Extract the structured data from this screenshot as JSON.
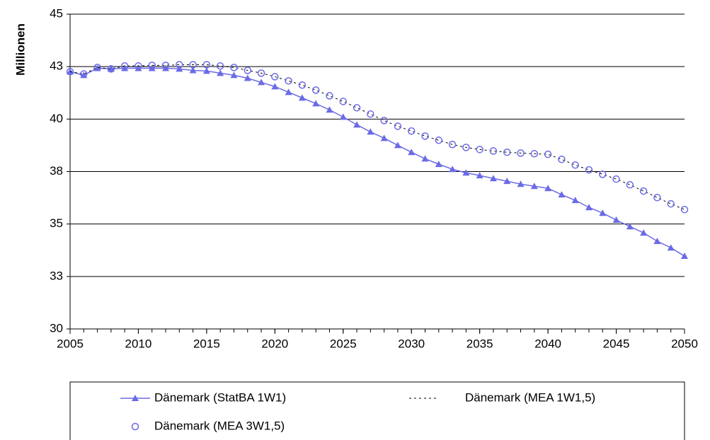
{
  "chart_data": {
    "type": "line",
    "y_label": "Millionen",
    "x": [
      2005,
      2006,
      2007,
      2008,
      2009,
      2010,
      2011,
      2012,
      2013,
      2014,
      2015,
      2016,
      2017,
      2018,
      2019,
      2020,
      2021,
      2022,
      2023,
      2024,
      2025,
      2026,
      2027,
      2028,
      2029,
      2030,
      2031,
      2032,
      2033,
      2034,
      2035,
      2036,
      2037,
      2038,
      2039,
      2040,
      2041,
      2042,
      2043,
      2044,
      2045,
      2046,
      2047,
      2048,
      2049,
      2050
    ],
    "xlim": [
      2005,
      2050
    ],
    "xticks": [
      2005,
      2010,
      2015,
      2020,
      2025,
      2030,
      2035,
      2040,
      2045,
      2050
    ],
    "ylim": [
      30,
      45
    ],
    "yticks": [
      30,
      {
        "value": 32.5,
        "label": "33"
      },
      35,
      {
        "value": 37.5,
        "label": "38"
      },
      40,
      {
        "value": 42.5,
        "label": "43"
      },
      45
    ],
    "grid": true,
    "series": [
      {
        "name": "Dänemark (StatBA 1W1)",
        "color": "#6b6be6",
        "line": "solid",
        "marker": "triangle",
        "values": [
          42.26,
          42.09,
          42.42,
          42.39,
          42.42,
          42.42,
          42.42,
          42.42,
          42.39,
          42.32,
          42.29,
          42.19,
          42.09,
          41.95,
          41.75,
          41.55,
          41.28,
          41.01,
          40.74,
          40.44,
          40.1,
          39.73,
          39.39,
          39.09,
          38.75,
          38.42,
          38.11,
          37.85,
          37.61,
          37.44,
          37.31,
          37.17,
          37.04,
          36.9,
          36.8,
          36.7,
          36.4,
          36.13,
          35.79,
          35.52,
          35.19,
          34.88,
          34.58,
          34.18,
          33.87,
          33.47
        ]
      },
      {
        "name": "Dänemark (MEA 1W1,5)",
        "color": "#000000",
        "line": "dashed",
        "marker": "none",
        "values": [
          42.26,
          42.15,
          42.46,
          42.39,
          42.53,
          42.53,
          42.56,
          42.56,
          42.59,
          42.59,
          42.59,
          42.53,
          42.46,
          42.32,
          42.19,
          42.02,
          41.82,
          41.62,
          41.38,
          41.11,
          40.84,
          40.54,
          40.24,
          39.93,
          39.66,
          39.43,
          39.19,
          38.99,
          38.79,
          38.65,
          38.55,
          38.48,
          38.42,
          38.38,
          38.35,
          38.32,
          38.08,
          37.81,
          37.58,
          37.37,
          37.14,
          36.87,
          36.57,
          36.26,
          35.96,
          35.69
        ]
      },
      {
        "name": "Dänemark (MEA 3W1,5)",
        "color": "#6b6be6",
        "line": "none",
        "marker": "circle",
        "values": [
          42.26,
          42.15,
          42.46,
          42.39,
          42.53,
          42.53,
          42.56,
          42.56,
          42.59,
          42.59,
          42.59,
          42.53,
          42.46,
          42.32,
          42.19,
          42.02,
          41.82,
          41.62,
          41.38,
          41.11,
          40.84,
          40.54,
          40.24,
          39.93,
          39.66,
          39.43,
          39.19,
          38.99,
          38.79,
          38.65,
          38.55,
          38.48,
          38.42,
          38.38,
          38.35,
          38.32,
          38.08,
          37.81,
          37.58,
          37.37,
          37.14,
          36.87,
          36.57,
          36.26,
          35.96,
          35.69
        ]
      }
    ]
  }
}
